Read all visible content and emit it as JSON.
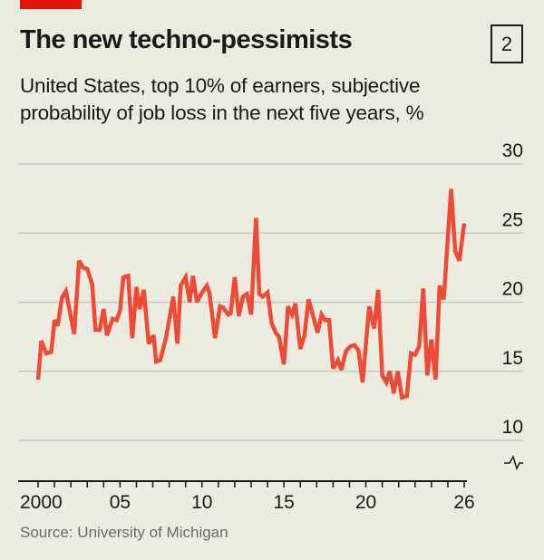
{
  "header": {
    "title": "The new techno-pessimists",
    "chart_number": "2",
    "subtitle_line1": "United States, top 10% of earners, subjective",
    "subtitle_line2": "probability of job loss in the next five years, %"
  },
  "source": "Source: University of Michigan",
  "colors": {
    "line": "#ee4b36",
    "accent_bar": "#e3120b",
    "background": "#ebebe0",
    "grid": "#c8c8bd"
  },
  "chart_data": {
    "type": "line",
    "title": "The new techno-pessimists",
    "xlabel": "",
    "ylabel": "",
    "xlim": [
      2000,
      2026
    ],
    "ylim": [
      10,
      30
    ],
    "y_axis_break": true,
    "y_axis_position": "right",
    "grid": true,
    "yticks": [
      10,
      15,
      20,
      25,
      30
    ],
    "ytick_labels": [
      "10",
      "15",
      "20",
      "25",
      "30"
    ],
    "xticks": [
      2000,
      2005,
      2010,
      2015,
      2020,
      2026
    ],
    "xtick_labels": [
      "2000",
      "05",
      "10",
      "15",
      "20",
      "26"
    ],
    "series": [
      {
        "x": [
          2000.0,
          2000.2,
          2000.5,
          2000.8,
          2001.0,
          2001.2,
          2001.45,
          2001.7,
          2002.2,
          2002.5,
          2002.75,
          2003.0,
          2003.3,
          2003.5,
          2003.75,
          2004.0,
          2004.2,
          2004.55,
          2004.8,
          2005.0,
          2005.2,
          2005.5,
          2005.75,
          2006.0,
          2006.2,
          2006.45,
          2006.75,
          2007.05,
          2007.2,
          2007.45,
          2007.8,
          2008.25,
          2008.5,
          2008.7,
          2009.0,
          2009.25,
          2009.45,
          2009.7,
          2010.0,
          2010.3,
          2010.45,
          2010.8,
          2011.1,
          2011.3,
          2011.6,
          2011.75,
          2012.0,
          2012.25,
          2012.5,
          2012.75,
          2013.0,
          2013.3,
          2013.5,
          2013.7,
          2014.0,
          2014.25,
          2014.5,
          2014.7,
          2015.0,
          2015.25,
          2015.5,
          2015.7,
          2016.0,
          2016.25,
          2016.5,
          2016.85,
          2017.05,
          2017.3,
          2017.5,
          2017.75,
          2018.0,
          2018.3,
          2018.5,
          2018.8,
          2019.05,
          2019.3,
          2019.55,
          2019.8,
          2020.2,
          2020.5,
          2020.75,
          2021.0,
          2021.25,
          2021.45,
          2021.7,
          2021.95,
          2022.2,
          2022.5,
          2022.75,
          2023.0,
          2023.25,
          2023.5,
          2023.75,
          2024.0,
          2024.25,
          2024.5,
          2024.75,
          2025.2,
          2025.45,
          2025.7,
          2026.0
        ],
        "values": [
          14.4,
          17.2,
          16.3,
          16.4,
          18.7,
          18.3,
          20.3,
          20.8,
          17.7,
          23.0,
          22.5,
          22.4,
          21.3,
          18.0,
          18.0,
          19.5,
          17.6,
          18.8,
          18.7,
          19.4,
          21.8,
          21.9,
          17.4,
          21.1,
          19.5,
          20.9,
          17.0,
          17.6,
          15.7,
          15.8,
          17.4,
          20.4,
          17.0,
          21.2,
          21.8,
          20.0,
          21.9,
          20.0,
          20.7,
          21.2,
          20.7,
          17.4,
          19.7,
          19.6,
          19.1,
          19.2,
          21.8,
          19.0,
          20.4,
          20.6,
          19.1,
          26.1,
          20.6,
          20.4,
          20.7,
          18.5,
          17.8,
          17.5,
          15.5,
          19.7,
          19.1,
          19.9,
          16.6,
          17.6,
          20.2,
          18.7,
          17.8,
          19.1,
          18.7,
          18.7,
          15.2,
          15.8,
          15.1,
          16.5,
          16.8,
          16.9,
          16.5,
          14.2,
          19.7,
          18.1,
          20.9,
          14.7,
          14.2,
          15.0,
          13.4,
          15.0,
          13.1,
          13.2,
          16.3,
          16.2,
          16.8,
          21.0,
          14.7,
          17.3,
          14.4,
          21.2,
          20.2,
          28.2,
          23.7,
          23.0,
          25.7
        ]
      }
    ]
  }
}
